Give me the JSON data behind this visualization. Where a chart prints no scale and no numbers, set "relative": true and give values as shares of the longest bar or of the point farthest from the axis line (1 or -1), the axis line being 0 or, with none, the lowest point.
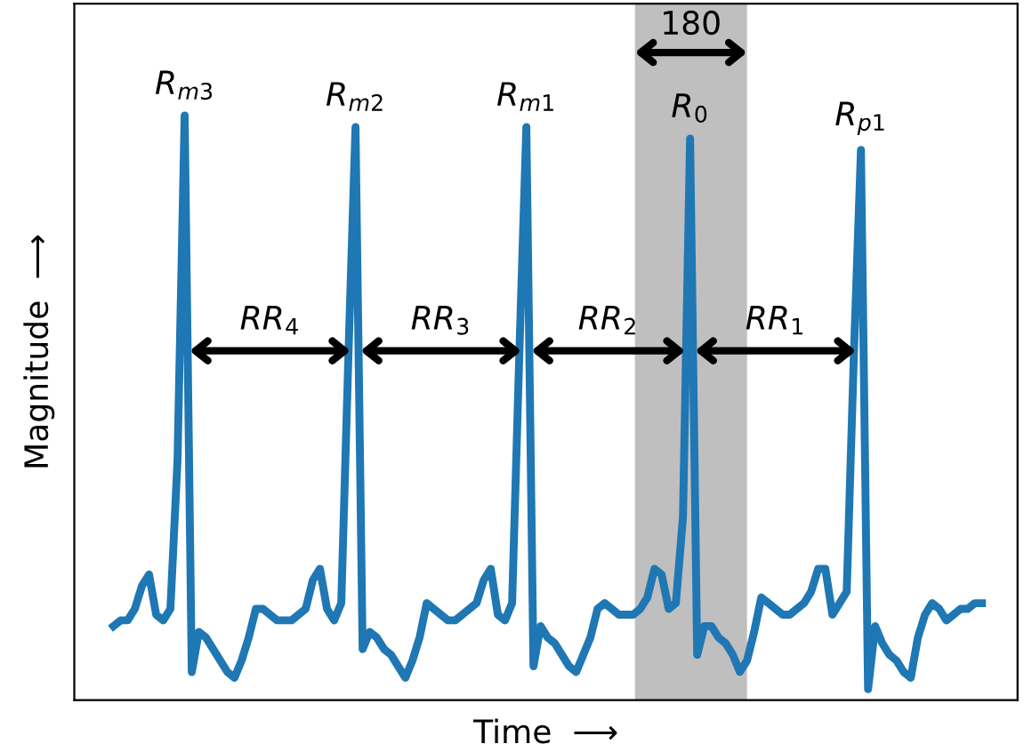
{
  "chart_data": {
    "type": "line",
    "relative": true,
    "xlabel": "Time  ⟶",
    "ylabel": "Magnitude  ⟶",
    "grid": false,
    "categories": [
      null,
      null,
      null,
      null,
      null,
      null,
      null,
      null,
      null,
      null,
      null,
      null,
      null,
      null,
      null,
      null,
      null,
      null,
      null,
      null,
      null,
      null,
      null,
      null,
      null,
      null,
      null,
      null,
      null,
      null,
      null,
      null,
      null,
      null,
      null,
      null,
      null,
      null,
      null,
      null,
      null,
      null,
      null,
      null,
      null,
      null,
      null,
      null,
      null,
      null,
      null,
      null,
      null,
      null,
      null,
      null,
      null,
      null,
      null,
      null,
      null,
      null,
      null,
      null,
      null,
      null,
      null,
      null,
      null,
      null,
      null,
      null,
      null,
      null,
      null,
      null,
      null,
      null,
      null,
      null,
      null,
      null,
      null,
      null,
      null,
      null,
      null,
      null,
      null,
      null,
      null,
      null,
      null,
      null,
      null,
      null,
      null,
      null,
      null,
      null,
      null,
      null,
      null,
      null,
      null,
      null,
      null,
      null,
      null,
      null,
      null,
      null,
      null,
      null,
      null,
      null,
      null,
      null,
      null,
      null,
      null,
      null,
      null
    ],
    "series": [
      {
        "color": "#1f77b4",
        "values": [
          0.11,
          0.12,
          0.12,
          0.14,
          0.18,
          0.2,
          0.13,
          0.12,
          0.14,
          0.4,
          1.0,
          0.03,
          0.1,
          0.09,
          0.07,
          0.05,
          0.03,
          0.02,
          0.05,
          0.09,
          0.14,
          0.14,
          0.13,
          0.12,
          0.12,
          0.12,
          0.13,
          0.14,
          0.19,
          0.21,
          0.14,
          0.12,
          0.15,
          0.58,
          0.98,
          0.07,
          0.1,
          0.09,
          0.07,
          0.06,
          0.04,
          0.02,
          0.05,
          0.09,
          0.15,
          0.14,
          0.13,
          0.12,
          0.12,
          0.13,
          0.14,
          0.15,
          0.19,
          0.21,
          0.13,
          0.12,
          0.15,
          0.58,
          0.98,
          0.04,
          0.11,
          0.09,
          0.08,
          0.06,
          0.04,
          0.03,
          0.06,
          0.09,
          0.14,
          0.15,
          0.14,
          0.13,
          0.13,
          0.13,
          0.14,
          0.16,
          0.21,
          0.2,
          0.14,
          0.15,
          0.3,
          0.96,
          0.06,
          0.11,
          0.11,
          0.09,
          0.08,
          0.06,
          0.03,
          0.05,
          0.1,
          0.16,
          0.15,
          0.14,
          0.13,
          0.13,
          0.14,
          0.15,
          0.17,
          0.21,
          0.21,
          0.13,
          0.15,
          0.17,
          0.58,
          0.94,
          0.0,
          0.11,
          0.08,
          0.06,
          0.05,
          0.03,
          0.02,
          0.09,
          0.13,
          0.15,
          0.14,
          0.12,
          0.13,
          0.14,
          0.14,
          0.15,
          0.15
        ]
      }
    ],
    "annotations": [
      "R$_{m3}$",
      "R$_{m2}$",
      "R$_{m1}$",
      "R$_{0}$",
      "R$_{p1}$",
      "RR$_{4}$",
      "RR$_{3}$",
      "RR$_{2}$",
      "RR$_{1}$",
      "180"
    ]
  }
}
